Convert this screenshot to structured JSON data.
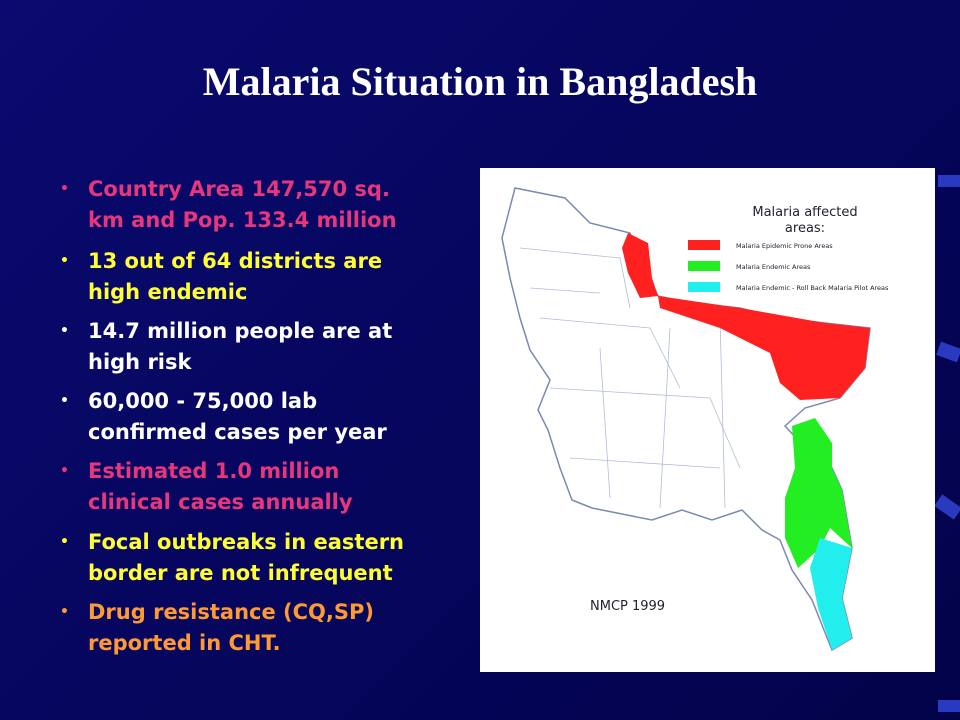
{
  "title": "Malaria Situation in Bangladesh",
  "bullets": [
    {
      "lines": [
        "Country Area 147,570 sq.",
        "km and Pop. 133.4 million"
      ],
      "color": "#e8367d"
    },
    {
      "lines": [
        "13 out of 64 districts are",
        "high endemic"
      ],
      "color": "#ffff33"
    },
    {
      "lines": [
        "14.7 million people are at",
        "high risk"
      ],
      "color": "#ffffff"
    },
    {
      "lines": [
        "60,000 - 75,000 lab",
        "confirmed cases per year"
      ],
      "color": "#ffffff"
    },
    {
      "lines": [
        "Estimated 1.0 million",
        "clinical cases annually"
      ],
      "color": "#e8367d"
    },
    {
      "lines": [
        "Focal outbreaks in eastern",
        "border are not infrequent"
      ],
      "color": "#ffff33"
    },
    {
      "lines": [
        "Drug resistance (CQ,SP)",
        "reported in CHT."
      ],
      "color": "#ff9933"
    }
  ],
  "map": {
    "legend_title": [
      "Malaria affected",
      "areas:"
    ],
    "legend": [
      {
        "label": "Malaria Epidemic Prone Areas",
        "color": "#ff2020"
      },
      {
        "label": "Malaria Endemic Areas",
        "color": "#22ee22"
      },
      {
        "label": "Malaria Endemic - Roll Back Malaria Pilot Areas",
        "color": "#22eeee"
      }
    ],
    "source": "NMCP 1999"
  }
}
